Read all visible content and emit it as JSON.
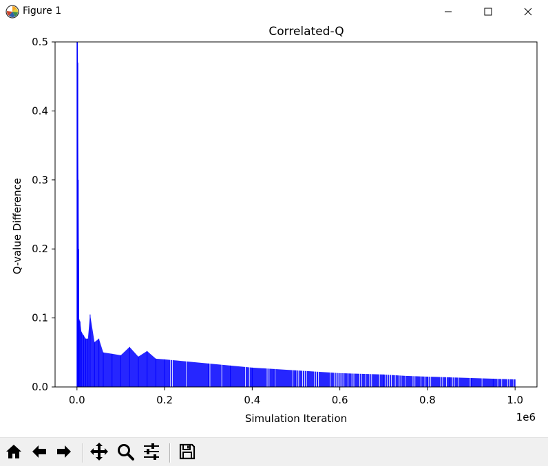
{
  "window": {
    "title": "Figure 1",
    "app_icon": "matplotlib-icon",
    "controls": [
      "minimize-icon",
      "maximize-icon",
      "close-icon"
    ]
  },
  "chart_data": {
    "type": "bar",
    "title": "Correlated-Q",
    "xlabel": "Simulation Iteration",
    "ylabel": "Q-value Difference",
    "x_offset_text": "1e6",
    "xlim": [
      -0.05,
      1.05
    ],
    "ylim": [
      0.0,
      0.5
    ],
    "xticks": [
      0.0,
      0.2,
      0.4,
      0.6,
      0.8,
      1.0
    ],
    "xtick_labels": [
      "0.0",
      "0.2",
      "0.4",
      "0.6",
      "0.8",
      "1.0"
    ],
    "yticks": [
      0.0,
      0.1,
      0.2,
      0.3,
      0.4,
      0.5
    ],
    "ytick_labels": [
      "0.0",
      "0.1",
      "0.2",
      "0.3",
      "0.4",
      "0.5"
    ],
    "grid": false,
    "color": "#0000ff",
    "series": [
      {
        "x": [
          0.0,
          0.001,
          0.002,
          0.003,
          0.004,
          0.005,
          0.007,
          0.01,
          0.015,
          0.02,
          0.025,
          0.03,
          0.04,
          0.05,
          0.06,
          0.08,
          0.1,
          0.12,
          0.14,
          0.16,
          0.18,
          0.2,
          0.25,
          0.3,
          0.35,
          0.4,
          0.45,
          0.5,
          0.55,
          0.6,
          0.65,
          0.7,
          0.75,
          0.8,
          0.85,
          0.9,
          0.95,
          1.0
        ],
        "values": [
          0.5,
          0.5,
          0.47,
          0.3,
          0.2,
          0.098,
          0.095,
          0.08,
          0.075,
          0.07,
          0.07,
          0.105,
          0.065,
          0.07,
          0.05,
          0.048,
          0.046,
          0.058,
          0.044,
          0.052,
          0.041,
          0.04,
          0.037,
          0.034,
          0.031,
          0.028,
          0.026,
          0.024,
          0.022,
          0.02,
          0.019,
          0.018,
          0.016,
          0.015,
          0.014,
          0.013,
          0.012,
          0.011
        ]
      }
    ]
  },
  "toolbar": {
    "buttons": [
      {
        "name": "home-icon",
        "label": "Home"
      },
      {
        "name": "back-arrow-icon",
        "label": "Back"
      },
      {
        "name": "forward-arrow-icon",
        "label": "Forward"
      },
      {
        "name": "pan-icon",
        "label": "Pan"
      },
      {
        "name": "zoom-icon",
        "label": "Zoom"
      },
      {
        "name": "configure-subplots-icon",
        "label": "Subplots"
      },
      {
        "name": "save-icon",
        "label": "Save"
      }
    ]
  }
}
